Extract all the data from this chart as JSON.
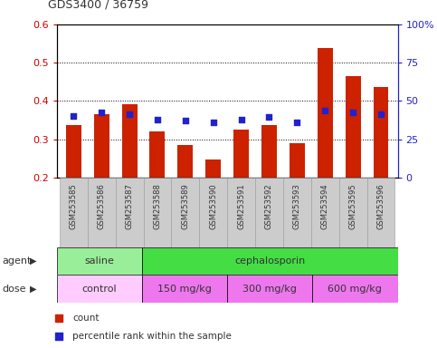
{
  "title": "GDS3400 / 36759",
  "samples": [
    "GSM253585",
    "GSM253586",
    "GSM253587",
    "GSM253588",
    "GSM253589",
    "GSM253590",
    "GSM253591",
    "GSM253592",
    "GSM253593",
    "GSM253594",
    "GSM253595",
    "GSM253596"
  ],
  "count_values": [
    0.336,
    0.365,
    0.391,
    0.32,
    0.286,
    0.247,
    0.325,
    0.337,
    0.29,
    0.537,
    0.464,
    0.437
  ],
  "percentile_values": [
    0.36,
    0.37,
    0.365,
    0.352,
    0.348,
    0.344,
    0.352,
    0.358,
    0.343,
    0.374,
    0.371,
    0.366
  ],
  "ylim": [
    0.2,
    0.6
  ],
  "yticks": [
    0.2,
    0.3,
    0.4,
    0.5,
    0.6
  ],
  "right_ylabels": [
    "0",
    "25",
    "50",
    "75",
    "100%"
  ],
  "right_ytick_vals": [
    0,
    25,
    50,
    75,
    100
  ],
  "bar_color": "#cc2200",
  "dot_color": "#2222cc",
  "bar_width": 0.55,
  "agent_groups": [
    {
      "label": "saline",
      "start": 0,
      "end": 3,
      "color": "#99ee99"
    },
    {
      "label": "cephalosporin",
      "start": 3,
      "end": 12,
      "color": "#44dd44"
    }
  ],
  "dose_groups": [
    {
      "label": "control",
      "start": 0,
      "end": 3,
      "color": "#ffccff"
    },
    {
      "label": "150 mg/kg",
      "start": 3,
      "end": 6,
      "color": "#ee77ee"
    },
    {
      "label": "300 mg/kg",
      "start": 6,
      "end": 9,
      "color": "#ee77ee"
    },
    {
      "label": "600 mg/kg",
      "start": 9,
      "end": 12,
      "color": "#ee77ee"
    }
  ],
  "bg_color": "#ffffff",
  "tick_label_color": "#cc0000",
  "right_tick_color": "#2222cc",
  "agent_label": "agent",
  "dose_label": "dose",
  "legend_count": "count",
  "legend_pct": "percentile rank within the sample"
}
